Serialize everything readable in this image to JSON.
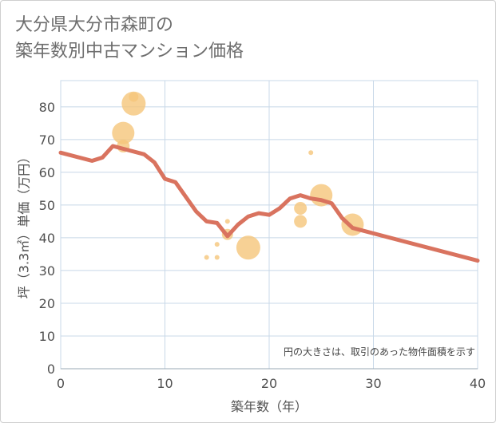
{
  "title": {
    "line1": "大分県大分市森町の",
    "line2": "築年数別中古マンション価格"
  },
  "chart_data": {
    "type": "scatter+line",
    "xlabel": "築年数（年）",
    "ylabel": "坪（3.3㎡）単価（万円）",
    "xlim": [
      0,
      40
    ],
    "ylim": [
      0,
      88
    ],
    "xticks": [
      0,
      10,
      20,
      30,
      40
    ],
    "yticks": [
      0,
      10,
      20,
      30,
      40,
      50,
      60,
      70,
      80
    ],
    "grid": true,
    "annotation": "円の大きさは、取引のあった物件面積を示す",
    "colors": {
      "line": "#d9735f",
      "bubble": "#f5c57a",
      "grid": "#c8d8e8"
    },
    "bubbles": [
      {
        "x": 7,
        "y": 81,
        "size": 15
      },
      {
        "x": 7,
        "y": 83,
        "size": 6
      },
      {
        "x": 6,
        "y": 72,
        "size": 14
      },
      {
        "x": 6,
        "y": 68,
        "size": 8
      },
      {
        "x": 24,
        "y": 66,
        "size": 3
      },
      {
        "x": 25,
        "y": 53,
        "size": 14
      },
      {
        "x": 23,
        "y": 49,
        "size": 8
      },
      {
        "x": 23,
        "y": 45,
        "size": 8
      },
      {
        "x": 28,
        "y": 44,
        "size": 14
      },
      {
        "x": 16,
        "y": 45,
        "size": 3
      },
      {
        "x": 16,
        "y": 41,
        "size": 7
      },
      {
        "x": 15,
        "y": 38,
        "size": 3
      },
      {
        "x": 18,
        "y": 37,
        "size": 15
      },
      {
        "x": 14,
        "y": 34,
        "size": 3
      },
      {
        "x": 15,
        "y": 34,
        "size": 3
      }
    ],
    "line": {
      "x": [
        0,
        3,
        4,
        5,
        8,
        9,
        10,
        11,
        13,
        14,
        15,
        16,
        17,
        18,
        19,
        20,
        21,
        22,
        23,
        24,
        25,
        26,
        27,
        28,
        40
      ],
      "y": [
        66,
        63.5,
        64.5,
        68,
        65.5,
        63,
        58,
        57,
        48,
        45,
        44.5,
        40.5,
        44,
        46.5,
        47.5,
        47,
        49,
        52,
        53,
        52,
        51.5,
        50.5,
        46,
        43,
        33
      ]
    }
  }
}
